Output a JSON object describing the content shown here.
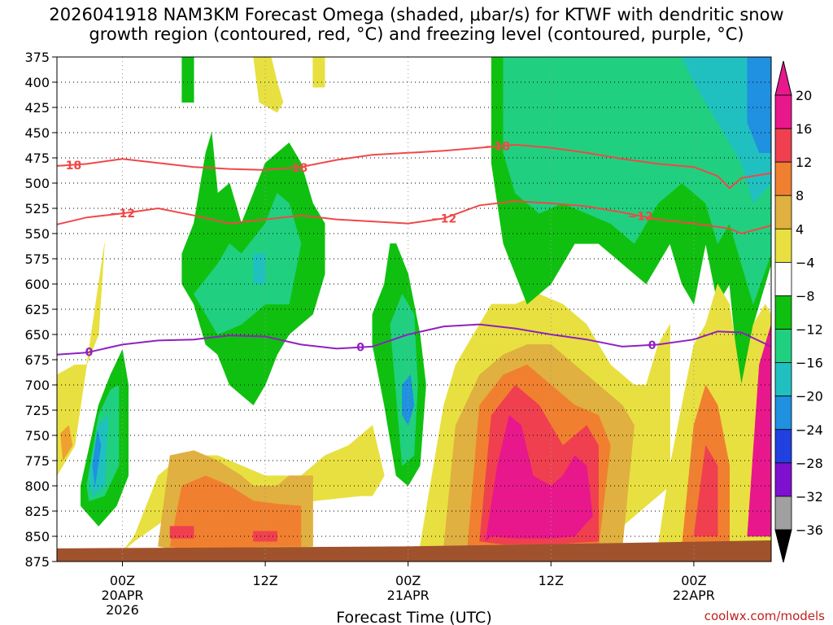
{
  "chart_data": {
    "type": "heatmap",
    "title_line1": "2026041918 NAM3KM Forecast Omega (shaded, μbar/s) for KTWF with dendritic snow",
    "title_line2": "growth region (contoured, red, °C) and freezing level (contoured, purple, °C)",
    "xlabel": "Forecast Time (UTC)",
    "credit": "coolwx.com/models",
    "x_range_hours": [
      -5.5,
      54.5
    ],
    "x_ticks": [
      {
        "hour": 0,
        "label": "00Z",
        "sub1": "20APR",
        "sub2": "2026"
      },
      {
        "hour": 12,
        "label": "12Z",
        "sub1": "",
        "sub2": ""
      },
      {
        "hour": 24,
        "label": "00Z",
        "sub1": "21APR",
        "sub2": ""
      },
      {
        "hour": 36,
        "label": "12Z",
        "sub1": "",
        "sub2": ""
      },
      {
        "hour": 48,
        "label": "00Z",
        "sub1": "22APR",
        "sub2": ""
      }
    ],
    "y_range_hpa": [
      375,
      875
    ],
    "y_ticks": [
      "375",
      "400",
      "425",
      "450",
      "475",
      "500",
      "525",
      "550",
      "575",
      "600",
      "625",
      "650",
      "675",
      "700",
      "725",
      "750",
      "775",
      "800",
      "825",
      "850",
      "875"
    ],
    "colorbar": {
      "labels": [
        "20",
        "16",
        "12",
        "8",
        "4",
        "-4",
        "-8",
        "-12",
        "-16",
        "-20",
        "-24",
        "-28",
        "-32",
        "-36"
      ],
      "colors": [
        "#e8188c",
        "#f04050",
        "#f08030",
        "#e0b040",
        "#e8e040",
        "#ffffff",
        "#10c010",
        "#20d080",
        "#20c0c0",
        "#2090e0",
        "#2040e0",
        "#8010d0",
        "#a0a0a0"
      ]
    },
    "contours": [
      {
        "name": "dgz-top",
        "label": "-18",
        "color": "#f04848",
        "x": [
          -5.5,
          -3,
          0,
          3,
          6,
          9,
          12,
          15,
          18,
          21,
          24,
          27,
          30,
          33,
          36,
          39,
          42,
          45,
          48,
          50,
          51,
          52,
          54.5
        ],
        "y": [
          483,
          481,
          476,
          480,
          484,
          486,
          487,
          484,
          477,
          472,
          470,
          468,
          465,
          462,
          465,
          470,
          476,
          481,
          484,
          493,
          505,
          495,
          490
        ]
      },
      {
        "name": "dgz-bottom",
        "label": "-12",
        "color": "#f04848",
        "x": [
          -5.5,
          -3,
          0,
          3,
          6,
          9,
          12,
          15,
          18,
          21,
          24,
          27,
          30,
          33,
          36,
          39,
          42,
          45,
          48,
          51,
          52,
          54.5
        ],
        "y": [
          541,
          534,
          530,
          525,
          532,
          540,
          536,
          532,
          536,
          538,
          540,
          535,
          522,
          518,
          520,
          523,
          529,
          536,
          540,
          545,
          550,
          542
        ]
      },
      {
        "name": "freezing-level",
        "label": "0",
        "color": "#9020c0",
        "x": [
          -5.5,
          -3,
          0,
          3,
          6,
          9,
          12,
          15,
          18,
          21,
          24,
          27,
          30,
          33,
          36,
          39,
          42,
          45,
          48,
          50,
          52,
          54.5
        ],
        "y": [
          670,
          668,
          660,
          656,
          655,
          651,
          652,
          660,
          664,
          662,
          650,
          642,
          640,
          644,
          650,
          655,
          662,
          660,
          655,
          647,
          648,
          662
        ]
      }
    ],
    "label_hours": {
      "dgz-top": [
        -4.5,
        14.5,
        31.5
      ],
      "dgz-bottom": [
        0,
        27,
        43.5
      ],
      "freezing-level": [
        -2.8,
        20,
        44.5
      ]
    },
    "regions": [
      {
        "name": "ascent-w1",
        "color": "#e8e040",
        "x": [
          -5.5,
          -4,
          -3,
          -2,
          -1.5,
          -2.5,
          -4,
          -5.5
        ],
        "y": [
          690,
          680,
          680,
          650,
          560,
          640,
          760,
          790
        ]
      },
      {
        "name": "ascent-w2",
        "color": "#f0a030",
        "x": [
          -5.2,
          -4.5,
          -4.2,
          -5
        ],
        "y": [
          748,
          740,
          760,
          775
        ]
      },
      {
        "name": "descent-c1",
        "color": "#10c010",
        "x": [
          -3.5,
          -2,
          -1,
          0,
          0.5,
          0.5,
          -0.5,
          -2,
          -3.5
        ],
        "y": [
          800,
          720,
          690,
          665,
          700,
          790,
          820,
          840,
          820
        ]
      },
      {
        "name": "descent-c1b",
        "color": "#20d080",
        "x": [
          -3,
          -2,
          -1,
          -0.3,
          -0.3,
          -1.5,
          -2.8
        ],
        "y": [
          800,
          730,
          705,
          700,
          780,
          810,
          815
        ]
      },
      {
        "name": "descent-c1c",
        "color": "#20c0c0",
        "x": [
          -2.8,
          -2,
          -1.2,
          -1.5,
          -2.5
        ],
        "y": [
          790,
          740,
          730,
          800,
          810
        ]
      },
      {
        "name": "descent-c1d",
        "color": "#2090e0",
        "x": [
          -2.5,
          -2.1,
          -1.8,
          -2.3
        ],
        "y": [
          780,
          745,
          760,
          800
        ]
      },
      {
        "name": "ascent-l1",
        "color": "#e8e040",
        "x": [
          0,
          1,
          3,
          5,
          8,
          12,
          15,
          17,
          19,
          21,
          22,
          21,
          20,
          16,
          12,
          8,
          4,
          1
        ],
        "y": [
          865,
          850,
          790,
          770,
          770,
          790,
          790,
          770,
          760,
          740,
          790,
          810,
          810,
          815,
          822,
          820,
          830,
          855
        ]
      },
      {
        "name": "ascent-l2",
        "color": "#e0b040",
        "x": [
          3,
          4,
          6,
          8,
          10,
          11,
          13,
          14,
          16,
          16,
          12,
          8,
          4
        ],
        "y": [
          860,
          770,
          765,
          775,
          790,
          800,
          800,
          790,
          790,
          860,
          862,
          860,
          862
        ]
      },
      {
        "name": "ascent-l3",
        "color": "#f08030",
        "x": [
          4,
          5,
          7,
          9,
          11,
          13,
          15,
          15,
          12,
          8,
          5
        ],
        "y": [
          860,
          800,
          790,
          800,
          815,
          818,
          820,
          860,
          860,
          862,
          862
        ]
      },
      {
        "name": "ascent-l4",
        "color": "#f04050",
        "x": [
          4,
          6,
          6,
          4
        ],
        "y": [
          840,
          840,
          852,
          852
        ]
      },
      {
        "name": "ascent-l5",
        "color": "#f04050",
        "x": [
          11,
          13,
          13,
          11
        ],
        "y": [
          845,
          845,
          855,
          855
        ]
      },
      {
        "name": "descent-c2",
        "color": "#10c010",
        "x": [
          5,
          6,
          7,
          7.5,
          8,
          9,
          10,
          11,
          12,
          13,
          14,
          15,
          16,
          17,
          17,
          16,
          14,
          13,
          12,
          11,
          10,
          9,
          8,
          7,
          6,
          5
        ],
        "y": [
          570,
          540,
          470,
          450,
          510,
          500,
          540,
          510,
          480,
          470,
          460,
          480,
          520,
          540,
          590,
          630,
          650,
          670,
          700,
          720,
          710,
          700,
          670,
          660,
          620,
          600
        ]
      },
      {
        "name": "descent-c2b",
        "color": "#20d080",
        "x": [
          6,
          8,
          9,
          10,
          12,
          13,
          14,
          15,
          14,
          12,
          10,
          8
        ],
        "y": [
          610,
          580,
          560,
          570,
          540,
          510,
          520,
          560,
          620,
          620,
          640,
          650
        ]
      },
      {
        "name": "descent-c2c",
        "color": "#20c0c0",
        "x": [
          11,
          12,
          12,
          11
        ],
        "y": [
          570,
          570,
          600,
          600
        ]
      },
      {
        "name": "descent-c3",
        "color": "#10c010",
        "x": [
          5,
          6,
          6,
          5
        ],
        "y": [
          375,
          375,
          420,
          420
        ]
      },
      {
        "name": "ascent-u1",
        "color": "#e8e040",
        "x": [
          11,
          12.5,
          13,
          13.5,
          13,
          11.5
        ],
        "y": [
          375,
          375,
          400,
          420,
          430,
          420
        ]
      },
      {
        "name": "ascent-u2",
        "color": "#e8e040",
        "x": [
          16,
          17,
          17,
          16
        ],
        "y": [
          375,
          375,
          405,
          405
        ]
      },
      {
        "name": "descent-c4",
        "color": "#10c010",
        "x": [
          21,
          22,
          22.5,
          23,
          24,
          24.5,
          25,
          25.5,
          25,
          24,
          23,
          22,
          21
        ],
        "y": [
          630,
          600,
          560,
          560,
          590,
          620,
          650,
          700,
          780,
          800,
          790,
          720,
          660
        ]
      },
      {
        "name": "descent-c4b",
        "color": "#20d080",
        "x": [
          22.5,
          23.5,
          24.5,
          24.8,
          24.5,
          23.5
        ],
        "y": [
          640,
          610,
          630,
          700,
          770,
          780
        ]
      },
      {
        "name": "descent-c4c",
        "color": "#2090e0",
        "x": [
          23.5,
          24.2,
          24.5,
          24,
          23.5
        ],
        "y": [
          700,
          690,
          720,
          740,
          730
        ]
      },
      {
        "name": "ascent-m1",
        "color": "#e8e040",
        "x": [
          25,
          27,
          28,
          29,
          30,
          31,
          33,
          35,
          37,
          39,
          40,
          41,
          43,
          44,
          45,
          46,
          46,
          40,
          33,
          27
        ],
        "y": [
          860,
          720,
          680,
          660,
          640,
          620,
          620,
          610,
          620,
          640,
          660,
          680,
          700,
          700,
          660,
          640,
          800,
          860,
          865,
          862
        ]
      },
      {
        "name": "ascent-m2",
        "color": "#e0b040",
        "x": [
          27,
          28,
          30,
          32,
          34,
          36,
          38,
          40,
          42,
          43,
          42,
          38,
          33,
          28
        ],
        "y": [
          860,
          740,
          690,
          670,
          660,
          660,
          680,
          700,
          720,
          740,
          860,
          862,
          862,
          860
        ]
      },
      {
        "name": "ascent-m3",
        "color": "#f08030",
        "x": [
          29,
          30,
          32,
          34,
          36,
          38,
          40,
          41,
          40,
          36,
          32,
          30
        ],
        "y": [
          860,
          720,
          690,
          680,
          700,
          720,
          730,
          760,
          860,
          862,
          862,
          860
        ]
      },
      {
        "name": "ascent-m4",
        "color": "#f04050",
        "x": [
          30,
          31,
          33,
          35,
          37,
          39,
          40,
          40,
          36,
          32
        ],
        "y": [
          855,
          730,
          700,
          720,
          760,
          740,
          760,
          855,
          858,
          858
        ]
      },
      {
        "name": "ascent-m5",
        "color": "#e8188c",
        "x": [
          30.5,
          31.5,
          32.5,
          33.5,
          34.5,
          36,
          37,
          38,
          39,
          39.5,
          38,
          36,
          33,
          31
        ],
        "y": [
          855,
          780,
          730,
          740,
          790,
          800,
          790,
          770,
          780,
          830,
          850,
          852,
          852,
          850
        ]
      },
      {
        "name": "descent-c5",
        "color": "#10c010",
        "x": [
          31,
          33,
          36,
          40,
          44,
          47,
          48,
          50,
          51,
          53,
          54.5,
          54.5,
          53,
          52,
          51,
          50,
          49,
          48,
          47,
          46,
          44,
          42,
          40,
          38,
          36,
          34,
          32,
          31
        ],
        "y": [
          375,
          375,
          375,
          375,
          375,
          375,
          375,
          375,
          375,
          375,
          375,
          580,
          640,
          720,
          600,
          620,
          560,
          620,
          600,
          560,
          600,
          580,
          560,
          560,
          600,
          620,
          560,
          480
        ]
      },
      {
        "name": "descent-c5b",
        "color": "#20d080",
        "x": [
          32,
          36,
          40,
          44,
          47,
          50,
          52,
          54.5,
          54.5,
          53,
          52,
          51,
          50,
          49,
          47,
          45,
          43,
          41,
          39,
          37,
          35,
          33,
          32
        ],
        "y": [
          375,
          375,
          375,
          375,
          375,
          375,
          375,
          375,
          570,
          620,
          580,
          540,
          560,
          520,
          500,
          520,
          560,
          540,
          530,
          520,
          530,
          510,
          470
        ]
      },
      {
        "name": "descent-c5c",
        "color": "#20c0c0",
        "x": [
          47,
          50,
          53,
          54.5,
          54.5,
          53,
          52,
          51,
          50,
          49,
          48
        ],
        "y": [
          375,
          375,
          375,
          375,
          500,
          520,
          480,
          460,
          440,
          420,
          400
        ]
      },
      {
        "name": "descent-c5d",
        "color": "#2090e0",
        "x": [
          52.5,
          53.5,
          54.5,
          54.5,
          53.5,
          52.5
        ],
        "y": [
          375,
          375,
          375,
          470,
          470,
          440
        ]
      },
      {
        "name": "ascent-e1",
        "color": "#e8e040",
        "x": [
          45,
          46,
          47,
          48,
          49,
          50,
          51,
          52,
          53,
          54,
          54.5,
          54.5,
          50,
          46
        ],
        "y": [
          860,
          780,
          720,
          660,
          640,
          600,
          620,
          700,
          640,
          620,
          630,
          860,
          862,
          862
        ]
      },
      {
        "name": "ascent-e2",
        "color": "#f08030",
        "x": [
          47,
          48,
          49,
          50,
          51,
          51,
          48
        ],
        "y": [
          860,
          740,
          700,
          720,
          780,
          860,
          860
        ]
      },
      {
        "name": "ascent-e3",
        "color": "#f04050",
        "x": [
          48,
          49,
          50,
          50,
          48
        ],
        "y": [
          850,
          760,
          780,
          850,
          850
        ]
      },
      {
        "name": "ascent-e4",
        "color": "#e8188c",
        "x": [
          52.5,
          53.5,
          54.5,
          54.5,
          53
        ],
        "y": [
          850,
          680,
          640,
          850,
          850
        ]
      }
    ],
    "terrain_color": "#a0522d"
  }
}
